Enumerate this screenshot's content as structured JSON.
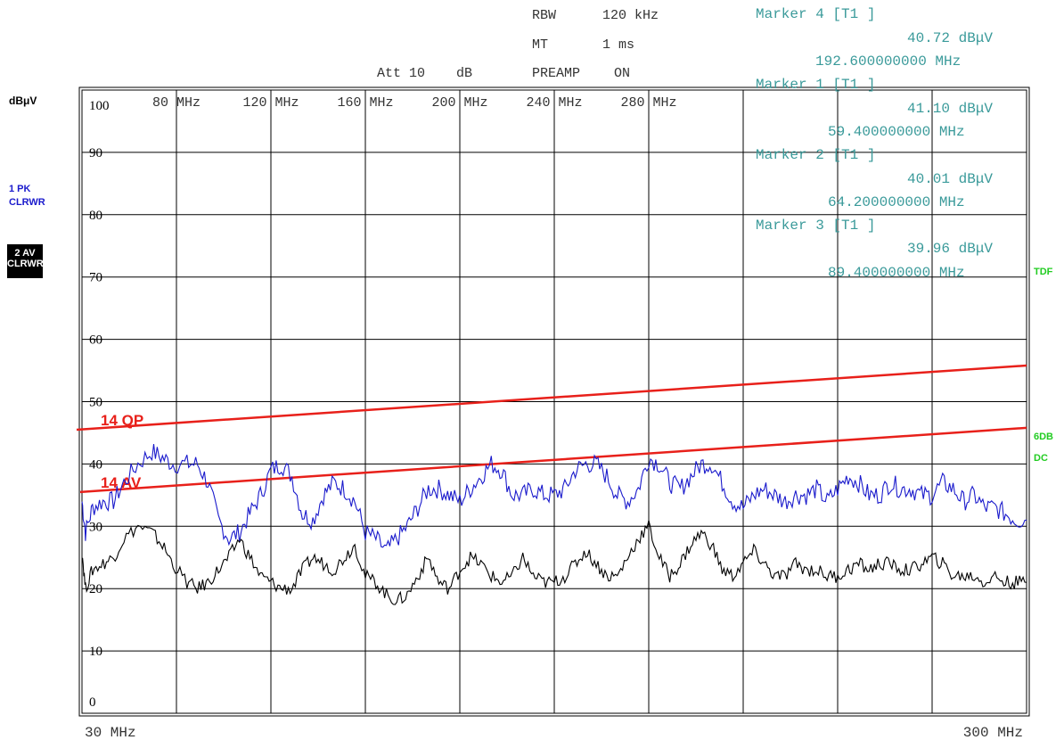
{
  "header": {
    "rbw_label": "RBW",
    "rbw_value": "120 kHz",
    "mt_label": "MT",
    "mt_value": "1 ms",
    "att_label": "Att 10",
    "att_unit": "dB",
    "preamp_label": "PREAMP",
    "preamp_value": "ON"
  },
  "markers": [
    {
      "title": "Marker 4 [T1 ]",
      "level": "40.72 dBμV",
      "freq": "192.600000000 MHz"
    },
    {
      "title": "Marker 1 [T1 ]",
      "level": "41.10 dBμV",
      "freq": "59.400000000 MHz"
    },
    {
      "title": "Marker 2 [T1 ]",
      "level": "40.01 dBμV",
      "freq": "64.200000000 MHz"
    },
    {
      "title": "Marker 3 [T1 ]",
      "level": "39.96 dBμV",
      "freq": "89.400000000 MHz"
    }
  ],
  "side": {
    "unit": "dBμV",
    "trace1_a": "1 PK",
    "trace1_b": "CLRWR",
    "trace2_a": "2 AV",
    "trace2_b": "CLRWR",
    "tdf": "TDF",
    "db6": "6DB",
    "dc": "DC"
  },
  "colors": {
    "trace_pk": "#1a1acc",
    "trace_av": "#000000",
    "limit": "#e8201a",
    "marker_text": "#3a9a9a",
    "side_green": "#22cc22",
    "side_blue": "#1a1acc"
  },
  "chart_data": {
    "type": "line",
    "xlabel_start": "30 MHz",
    "xlabel_end": "300 MHz",
    "xlim": [
      30,
      300
    ],
    "ylim": [
      0,
      100
    ],
    "x_ticks": [
      {
        "value": 80,
        "label": "80 MHz"
      },
      {
        "value": 120,
        "label": "120 MHz"
      },
      {
        "value": 160,
        "label": "160 MHz"
      },
      {
        "value": 200,
        "label": "200 MHz"
      },
      {
        "value": 240,
        "label": "240 MHz"
      },
      {
        "value": 280,
        "label": "280 MHz"
      }
    ],
    "y_ticks": [
      {
        "value": 100,
        "label": "100"
      },
      {
        "value": 90,
        "label": "90"
      },
      {
        "value": 80,
        "label": "80"
      },
      {
        "value": 70,
        "label": "70"
      },
      {
        "value": 60,
        "label": "60"
      },
      {
        "value": 50,
        "label": "50"
      },
      {
        "value": 40,
        "label": "40"
      },
      {
        "value": 30,
        "label": "30"
      },
      {
        "value": 20,
        "label": "20"
      },
      {
        "value": 10,
        "label": "10"
      },
      {
        "value": 0,
        "label": "0"
      }
    ],
    "limit_lines": [
      {
        "name": "14 QP",
        "points": [
          [
            30,
            45.5
          ],
          [
            300,
            55.8
          ]
        ]
      },
      {
        "name": "14 AV",
        "points": [
          [
            30,
            35.5
          ],
          [
            300,
            45.8
          ]
        ]
      }
    ],
    "series": [
      {
        "name": "1 PK",
        "points": [
          [
            30,
            34
          ],
          [
            31,
            29
          ],
          [
            33,
            33
          ],
          [
            36,
            34
          ],
          [
            39,
            34
          ],
          [
            42,
            37
          ],
          [
            46,
            40
          ],
          [
            50,
            42
          ],
          [
            53,
            41
          ],
          [
            56,
            40
          ],
          [
            60,
            40
          ],
          [
            63,
            40
          ],
          [
            66,
            37
          ],
          [
            69,
            31
          ],
          [
            72,
            28
          ],
          [
            75,
            29
          ],
          [
            78,
            32
          ],
          [
            81,
            35
          ],
          [
            84,
            39
          ],
          [
            87,
            40
          ],
          [
            90,
            38
          ],
          [
            93,
            32
          ],
          [
            96,
            31
          ],
          [
            99,
            35
          ],
          [
            102,
            37
          ],
          [
            105,
            36
          ],
          [
            108,
            34
          ],
          [
            111,
            29
          ],
          [
            114,
            28
          ],
          [
            117,
            26
          ],
          [
            120,
            28
          ],
          [
            123,
            30
          ],
          [
            126,
            33
          ],
          [
            129,
            36
          ],
          [
            132,
            36
          ],
          [
            135,
            35
          ],
          [
            138,
            34
          ],
          [
            141,
            36
          ],
          [
            144,
            38
          ],
          [
            147,
            40
          ],
          [
            150,
            39
          ],
          [
            153,
            35
          ],
          [
            156,
            35
          ],
          [
            159,
            36
          ],
          [
            162,
            35
          ],
          [
            165,
            35
          ],
          [
            168,
            36
          ],
          [
            171,
            39
          ],
          [
            174,
            40
          ],
          [
            177,
            40
          ],
          [
            180,
            38
          ],
          [
            183,
            35
          ],
          [
            186,
            34
          ],
          [
            189,
            36
          ],
          [
            192,
            41
          ],
          [
            195,
            40
          ],
          [
            198,
            37
          ],
          [
            201,
            36
          ],
          [
            204,
            38
          ],
          [
            207,
            40
          ],
          [
            210,
            40
          ],
          [
            213,
            37
          ],
          [
            216,
            34
          ],
          [
            219,
            33
          ],
          [
            222,
            35
          ],
          [
            225,
            36
          ],
          [
            228,
            35
          ],
          [
            231,
            34
          ],
          [
            234,
            35
          ],
          [
            237,
            35
          ],
          [
            240,
            36
          ],
          [
            243,
            34
          ],
          [
            246,
            36
          ],
          [
            249,
            38
          ],
          [
            252,
            37
          ],
          [
            255,
            35
          ],
          [
            258,
            35
          ],
          [
            261,
            37
          ],
          [
            264,
            36
          ],
          [
            267,
            36
          ],
          [
            270,
            35
          ],
          [
            273,
            35
          ],
          [
            276,
            37
          ],
          [
            279,
            36
          ],
          [
            282,
            34
          ],
          [
            285,
            35
          ],
          [
            288,
            33
          ],
          [
            291,
            33
          ],
          [
            294,
            32
          ],
          [
            297,
            31
          ],
          [
            300,
            31
          ]
        ]
      },
      {
        "name": "2 AV",
        "points": [
          [
            30,
            26
          ],
          [
            31,
            20
          ],
          [
            33,
            23
          ],
          [
            36,
            24
          ],
          [
            39,
            25
          ],
          [
            42,
            28
          ],
          [
            46,
            30
          ],
          [
            50,
            29
          ],
          [
            53,
            27
          ],
          [
            56,
            24
          ],
          [
            60,
            21
          ],
          [
            63,
            20
          ],
          [
            66,
            21
          ],
          [
            69,
            23
          ],
          [
            72,
            25
          ],
          [
            75,
            28
          ],
          [
            78,
            25
          ],
          [
            81,
            22
          ],
          [
            84,
            21
          ],
          [
            87,
            20
          ],
          [
            90,
            20
          ],
          [
            93,
            23
          ],
          [
            96,
            25
          ],
          [
            99,
            24
          ],
          [
            102,
            23
          ],
          [
            105,
            25
          ],
          [
            108,
            27
          ],
          [
            111,
            22
          ],
          [
            114,
            21
          ],
          [
            117,
            19
          ],
          [
            120,
            18
          ],
          [
            123,
            19
          ],
          [
            126,
            22
          ],
          [
            129,
            25
          ],
          [
            132,
            21
          ],
          [
            135,
            20
          ],
          [
            138,
            23
          ],
          [
            141,
            25
          ],
          [
            144,
            24
          ],
          [
            147,
            22
          ],
          [
            150,
            21
          ],
          [
            153,
            22
          ],
          [
            156,
            25
          ],
          [
            159,
            22
          ],
          [
            162,
            21
          ],
          [
            165,
            21
          ],
          [
            168,
            22
          ],
          [
            171,
            24
          ],
          [
            174,
            26
          ],
          [
            177,
            24
          ],
          [
            180,
            22
          ],
          [
            183,
            22
          ],
          [
            186,
            25
          ],
          [
            189,
            28
          ],
          [
            192,
            30
          ],
          [
            195,
            25
          ],
          [
            198,
            22
          ],
          [
            201,
            24
          ],
          [
            204,
            27
          ],
          [
            207,
            29
          ],
          [
            210,
            27
          ],
          [
            213,
            23
          ],
          [
            216,
            22
          ],
          [
            219,
            24
          ],
          [
            222,
            26
          ],
          [
            225,
            24
          ],
          [
            228,
            22
          ],
          [
            231,
            22
          ],
          [
            234,
            24
          ],
          [
            237,
            23
          ],
          [
            240,
            23
          ],
          [
            243,
            22
          ],
          [
            246,
            22
          ],
          [
            249,
            23
          ],
          [
            252,
            24
          ],
          [
            255,
            23
          ],
          [
            258,
            24
          ],
          [
            261,
            24
          ],
          [
            264,
            23
          ],
          [
            267,
            23
          ],
          [
            270,
            24
          ],
          [
            273,
            25
          ],
          [
            276,
            24
          ],
          [
            279,
            22
          ],
          [
            282,
            22
          ],
          [
            285,
            22
          ],
          [
            288,
            21
          ],
          [
            291,
            22
          ],
          [
            294,
            21
          ],
          [
            297,
            21
          ],
          [
            300,
            21
          ]
        ]
      }
    ]
  }
}
